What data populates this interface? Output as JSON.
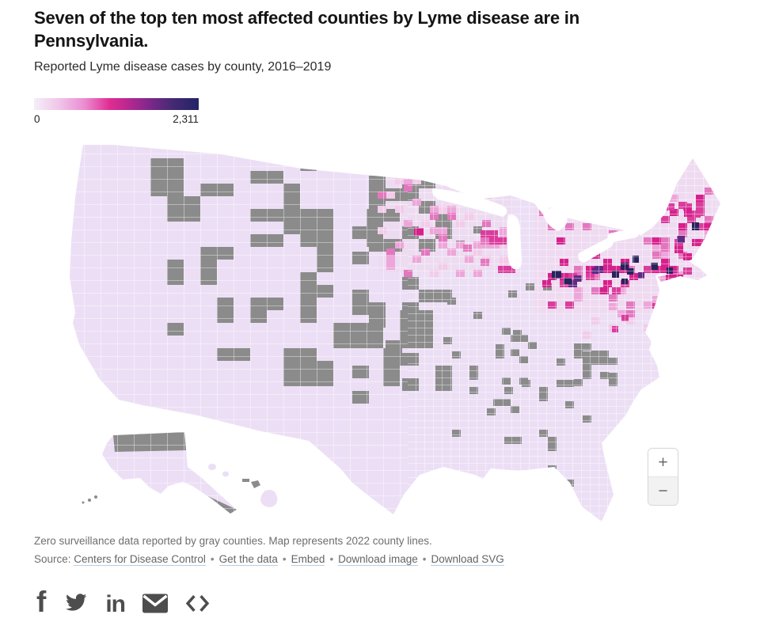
{
  "header": {
    "title": "Seven of the top ten most affected counties by Lyme disease are in Pennsylvania.",
    "subtitle": "Reported Lyme disease cases by county, 2016–2019"
  },
  "legend": {
    "min_label": "0",
    "max_label": "2,311",
    "stops": [
      "#f5eef9 0%",
      "#f0c9e9 14%",
      "#ec8fd4 30%",
      "#e02d92 46%",
      "#b52790 58%",
      "#7e288c 70%",
      "#452a74 84%",
      "#222465 100%"
    ]
  },
  "map": {
    "type": "choropleth",
    "region": "United States counties",
    "colors": {
      "base": "#ecdff5",
      "gray": "#8b8b8b",
      "p1": "#f2cce9",
      "p2": "#eda6d9",
      "p3": "#e377be",
      "p4": "#da3d9c",
      "p5": "#d6218c",
      "purple": "#5f2a84",
      "navy": "#29235c",
      "water": "#ffffff"
    }
  },
  "controls": {
    "zoom_in": "+",
    "zoom_out": "−"
  },
  "footer": {
    "note": "Zero surveillance data reported by gray counties. Map represents 2022 county lines.",
    "source_label": "Source:",
    "separator": "•",
    "links": [
      "Centers for Disease Control",
      "Get the data",
      "Embed",
      "Download image",
      "Download SVG"
    ]
  },
  "share": {
    "facebook_glyph": "f",
    "linkedin_glyph": "in",
    "icons": [
      "facebook",
      "twitter",
      "linkedin",
      "email",
      "embed-code"
    ]
  },
  "chart_data": {
    "type": "choropleth",
    "geography": "United States counties (2022 county lines)",
    "metric": "Reported Lyme disease cases by county, 2016–2019",
    "value_min": 0,
    "value_max": 2311,
    "legend_min_label": "0",
    "legend_max_label": "2,311",
    "no_data_note": "Zero surveillance data reported by gray counties",
    "source": "Centers for Disease Control",
    "visible_clusters": [
      {
        "region": "Pennsylvania / Mid-Atlantic",
        "intensity": "highest, darkest navy counties near maximum 2,311"
      },
      {
        "region": "New England coast and Maine",
        "intensity": "high, magenta counties"
      },
      {
        "region": "Upper Midwest Minnesota–Wisconsin",
        "intensity": "moderate pink cluster"
      },
      {
        "region": "West and Great Plains",
        "intensity": "near zero, many gray no-data counties"
      }
    ]
  }
}
